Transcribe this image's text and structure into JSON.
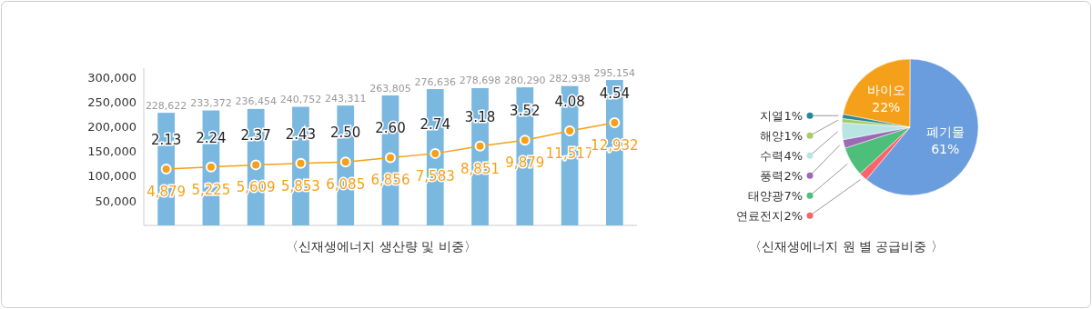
{
  "chart_data": [
    {
      "type": "bar",
      "title": "〈신재생에너지 생산량 및 비중〉",
      "categories": [
        null,
        null,
        null,
        null,
        null,
        null,
        null,
        null,
        null,
        null,
        null
      ],
      "ylim": [
        0,
        310000
      ],
      "yticks": [
        {
          "value": 50000,
          "label": "50,000"
        },
        {
          "value": 100000,
          "label": "100,000"
        },
        {
          "value": 150000,
          "label": "150,000"
        },
        {
          "value": 200000,
          "label": "200,000"
        },
        {
          "value": 250000,
          "label": "250,000"
        },
        {
          "value": 300000,
          "label": "300,000"
        }
      ],
      "tick_labels": "y",
      "annotations": [
        "2.13",
        "2.24",
        "2.37",
        "2.43",
        "2.50",
        "2.60",
        "2.74",
        "3.18",
        "3.52",
        "4.08",
        "4.54"
      ],
      "series": [
        {
          "type": "bar",
          "color": "#7ab8e0",
          "values": [
            228622,
            233372,
            236454,
            240752,
            243311,
            263805,
            276636,
            278698,
            280290,
            282938,
            295154
          ],
          "value_labels": [
            "228,622",
            "233,372",
            "236,454",
            "240,752",
            "243,311",
            "263,805",
            "276,636",
            "278,698",
            "280,290",
            "282,938",
            "295,154"
          ]
        },
        {
          "type": "line",
          "axis": "y2",
          "marker": "circle",
          "color": "#f5a01a",
          "values": [
            4879,
            5225,
            5609,
            5853,
            6085,
            6856,
            7583,
            8851,
            9879,
            11517,
            12932
          ],
          "value_labels": [
            "4,879",
            "5,225",
            "5,609",
            "5,853",
            "6,085",
            "6,856",
            "7,583",
            "8,851",
            "9,879",
            "11,517",
            "12,932"
          ]
        }
      ]
    },
    {
      "type": "pie",
      "title": "〈신재생에너지 원 별 공급비중 〉",
      "categories": [
        "바이오",
        "폐기물",
        "연료전지",
        "태양광",
        "풍력",
        "수력",
        "해양",
        "지열"
      ],
      "values": [
        22,
        61,
        2,
        7,
        2,
        4,
        1,
        1
      ],
      "value_labels": [
        "22%",
        "61%",
        "2%",
        "7%",
        "2%",
        "4%",
        "1%",
        "1%"
      ],
      "legend": "left",
      "colors": [
        "#f5a01a",
        "#6a9ddd",
        "#fc636b",
        "#4dbf7a",
        "#9e69b4",
        "#b8e4e4",
        "#a8cc64",
        "#268899"
      ]
    }
  ]
}
